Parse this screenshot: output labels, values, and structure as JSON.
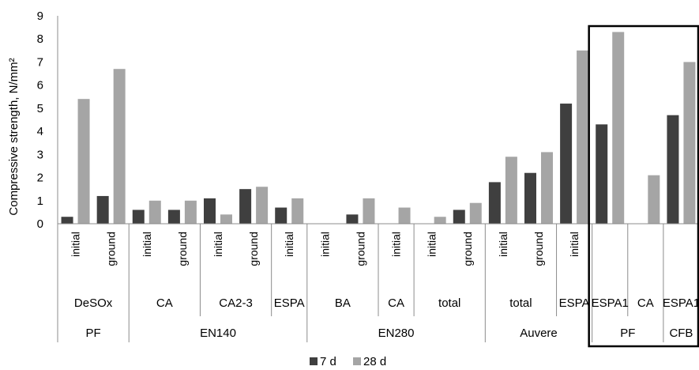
{
  "chart_data": {
    "type": "bar",
    "ylabel": "Compressive strength, N/mm²",
    "ylim": [
      0,
      9
    ],
    "yticks": [
      "0",
      "1",
      "2",
      "3",
      "4",
      "5",
      "6",
      "7",
      "8",
      "9"
    ],
    "grid": false,
    "legend_position": "bottom",
    "colors": {
      "7 d": "#3f3f3f",
      "28 d": "#a5a5a5",
      "highlight_box": "#000000"
    },
    "series": [
      {
        "name": "7 d",
        "values": [
          0.3,
          1.2,
          0.6,
          0.6,
          1.1,
          1.5,
          0.7,
          0,
          0.4,
          0,
          0,
          0.6,
          1.8,
          2.2,
          5.2,
          4.3,
          0,
          4.7
        ]
      },
      {
        "name": "28 d",
        "values": [
          5.4,
          6.7,
          1.0,
          1.0,
          0.4,
          1.6,
          1.1,
          0,
          1.1,
          0.7,
          0.3,
          0.9,
          2.9,
          3.1,
          7.5,
          8.3,
          2.1,
          7.0
        ]
      }
    ],
    "categories": [
      "initial",
      "ground",
      "initial",
      "ground",
      "initial",
      "ground",
      "initial",
      "initial",
      "ground",
      "initial",
      "initial",
      "ground",
      "initial",
      "ground",
      "initial",
      "",
      "",
      ""
    ],
    "subgroups": [
      {
        "label": "DeSOx",
        "span": [
          0,
          1
        ]
      },
      {
        "label": "CA",
        "span": [
          2,
          3
        ]
      },
      {
        "label": "CA2-3",
        "span": [
          4,
          5
        ]
      },
      {
        "label": "ESPA",
        "span": [
          6,
          6
        ]
      },
      {
        "label": "BA",
        "span": [
          7,
          8
        ]
      },
      {
        "label": "CA",
        "span": [
          9,
          9
        ]
      },
      {
        "label": "total",
        "span": [
          10,
          11
        ]
      },
      {
        "label": "total",
        "span": [
          12,
          13
        ]
      },
      {
        "label": "ESPA",
        "span": [
          14,
          14
        ]
      },
      {
        "label": "ESPA1",
        "span": [
          15,
          15
        ]
      },
      {
        "label": "CA",
        "span": [
          16,
          16
        ]
      },
      {
        "label": "ESPA1",
        "span": [
          17,
          17
        ]
      }
    ],
    "groups": [
      {
        "label": "PF",
        "span": [
          0,
          1
        ]
      },
      {
        "label": "EN140",
        "span": [
          2,
          6
        ]
      },
      {
        "label": "EN280",
        "span": [
          7,
          11
        ]
      },
      {
        "label": "Auvere",
        "span": [
          12,
          14
        ]
      },
      {
        "label": "PF",
        "span": [
          15,
          16
        ]
      },
      {
        "label": "CFB",
        "span": [
          17,
          17
        ]
      }
    ],
    "highlight_span": [
      15,
      17
    ]
  }
}
